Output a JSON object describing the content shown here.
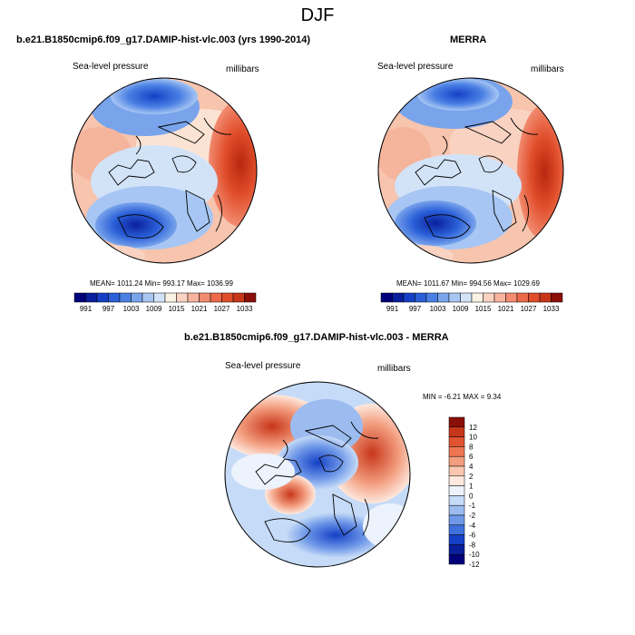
{
  "figure_title": "DJF",
  "field_label": "Sea-level pressure",
  "units_label": "millibars",
  "colors": {
    "pressure_scale": [
      "#00007a",
      "#0a1f9c",
      "#1540c6",
      "#2a5fd8",
      "#4a80e4",
      "#79a4ec",
      "#a7c6f3",
      "#d2e3f8",
      "#fbf2e6",
      "#f9d2c2",
      "#f7b39e",
      "#f28b70",
      "#ec6a4a",
      "#e04d2a",
      "#c8361a",
      "#8a0f08"
    ],
    "diff_scale": [
      "#00007a",
      "#0a1f9c",
      "#1540c6",
      "#3f6fdc",
      "#6f98e8",
      "#9cbcf0",
      "#c6dbf7",
      "#ecf3fc",
      "#fde9df",
      "#f9c7b1",
      "#f39d7f",
      "#ee7652",
      "#e25331",
      "#c8361a",
      "#8a0f08"
    ]
  },
  "panels": {
    "model": {
      "title": "b.e21.B1850cmip6.f09_g17.DAMIP-hist-vlc.003 (yrs 1990-2014)",
      "stats": "MEAN= 1011.24  Min= 993.17  Max= 1036.99"
    },
    "obs": {
      "title": "MERRA",
      "stats": "MEAN= 1011.67  Min= 994.56  Max= 1029.69"
    },
    "diff": {
      "title": "b.e21.B1850cmip6.f09_g17.DAMIP-hist-vlc.003 - MERRA",
      "stats": "MIN =  -6.21 MAX =   9.34"
    }
  },
  "pressure_colorbar_labels": [
    "991",
    "997",
    "1003",
    "1009",
    "1015",
    "1021",
    "1027",
    "1033"
  ],
  "diff_colorbar_labels": [
    "12",
    "10",
    "8",
    "6",
    "4",
    "2",
    "1",
    "0",
    "-1",
    "-2",
    "-4",
    "-6",
    "-8",
    "-10",
    "-12"
  ]
}
